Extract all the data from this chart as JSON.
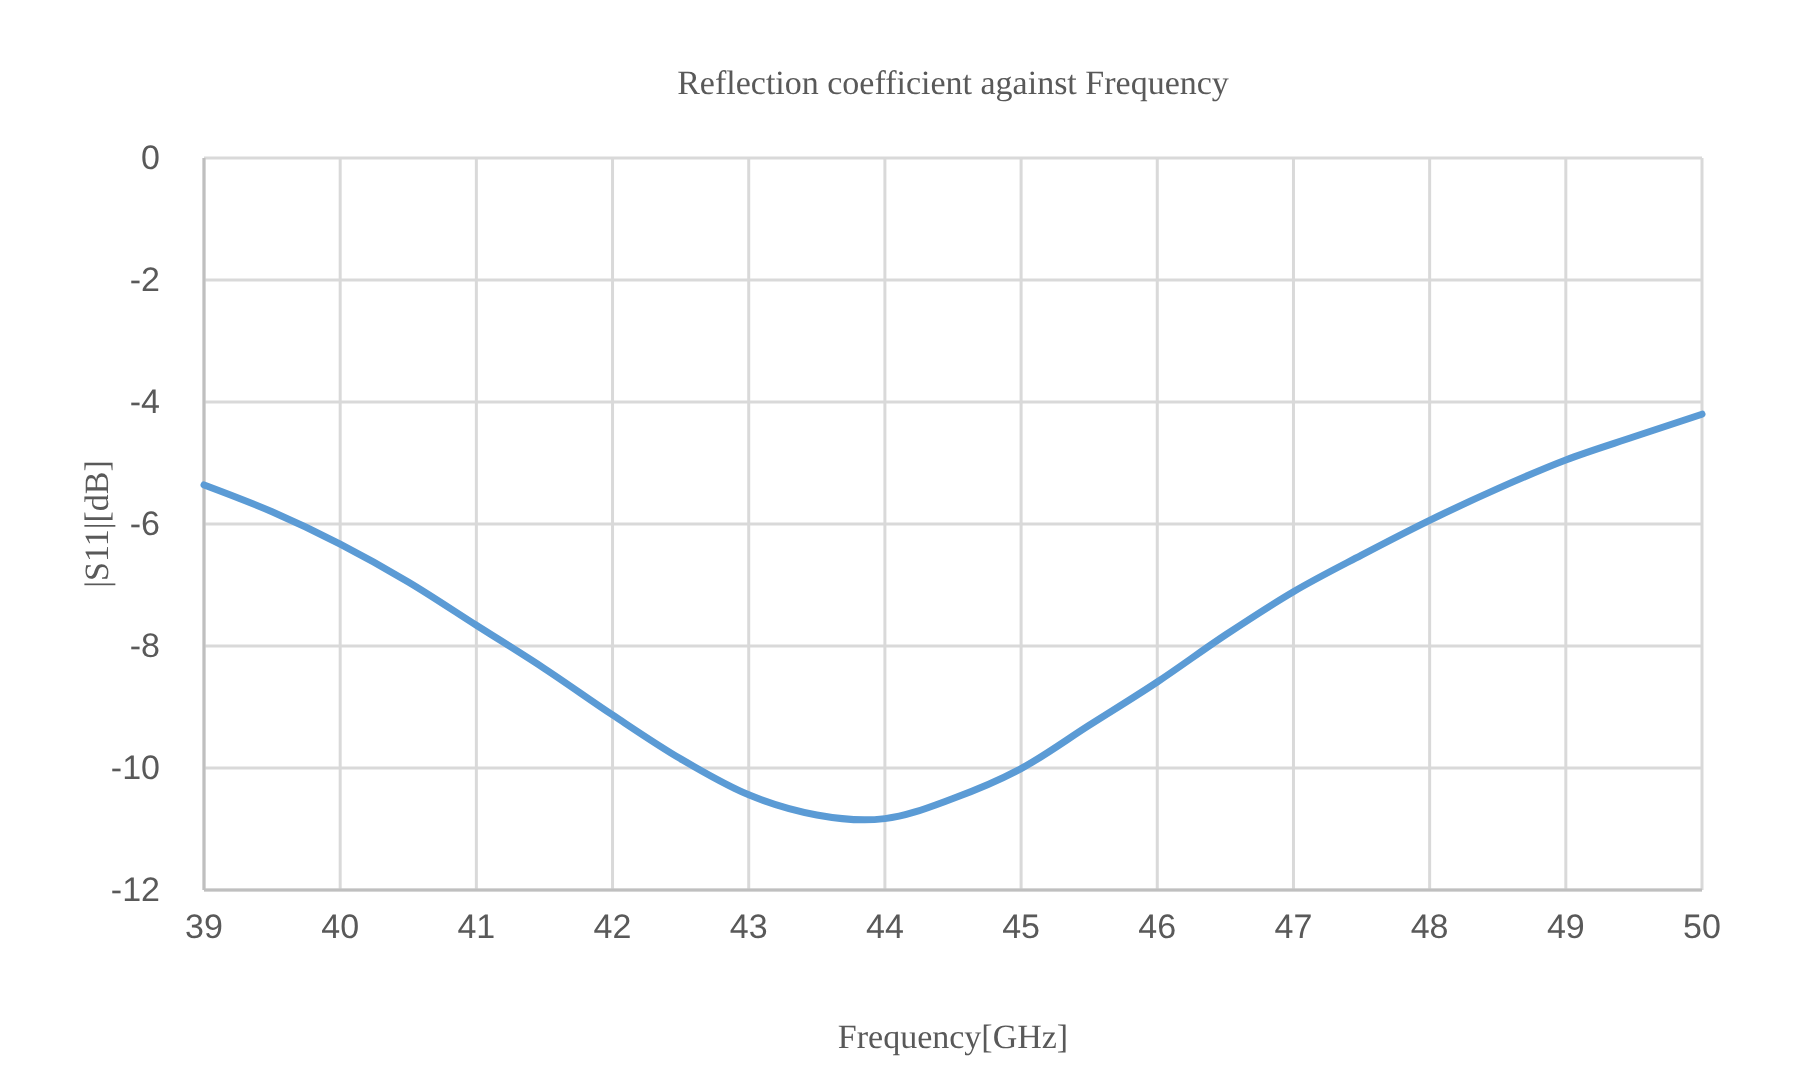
{
  "chart_data": {
    "type": "line",
    "title": "Reflection coefficient against Frequency",
    "xlabel": "Frequency[GHz]",
    "ylabel": "|S11|[dB]",
    "x": [
      39,
      39.5,
      40,
      40.5,
      41,
      41.5,
      42,
      42.5,
      43,
      43.5,
      43.85,
      44,
      44.5,
      45,
      45.5,
      46,
      46.5,
      47,
      47.5,
      48,
      48.5,
      49,
      49.5,
      50
    ],
    "series": [
      {
        "color": "#5b9bd5",
        "values": [
          -5.36,
          -5.8,
          -6.33,
          -6.95,
          -7.66,
          -8.37,
          -9.13,
          -9.85,
          -10.44,
          -10.77,
          -10.85,
          -10.83,
          -10.5,
          -10.01,
          -9.3,
          -8.59,
          -7.82,
          -7.11,
          -6.51,
          -5.94,
          -5.42,
          -4.95,
          -4.57,
          -4.2
        ]
      }
    ],
    "xlim": [
      39,
      50
    ],
    "xticks": [
      39,
      40,
      41,
      42,
      43,
      44,
      45,
      46,
      47,
      48,
      49,
      50
    ],
    "ylim": [
      -12,
      0
    ],
    "yticks": [
      -12,
      -10,
      -8,
      -6,
      -4,
      -2,
      0
    ],
    "grid": true,
    "marker": "none",
    "line_style": "solid"
  }
}
